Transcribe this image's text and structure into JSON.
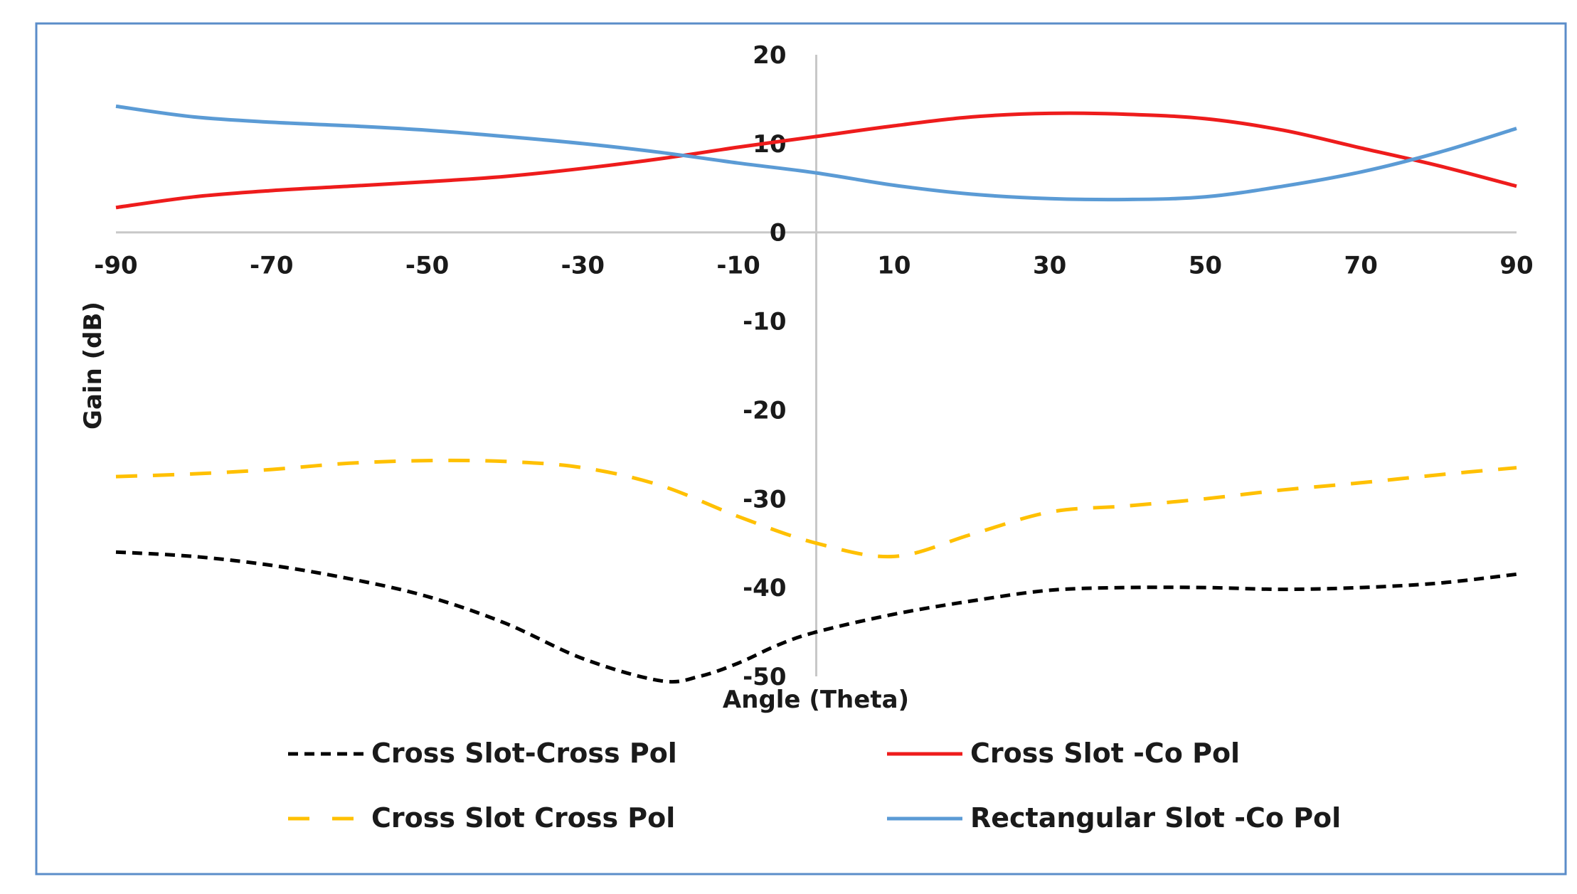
{
  "chart_data": {
    "type": "line",
    "xlabel": "Angle (Theta)",
    "ylabel": "Gain (dB)",
    "xlim": [
      -90,
      90
    ],
    "ylim": [
      -50,
      20
    ],
    "x_ticks": [
      -90,
      -70,
      -50,
      -30,
      -10,
      10,
      30,
      50,
      70,
      90
    ],
    "y_ticks": [
      20,
      10,
      0,
      -10,
      -20,
      -30,
      -40,
      -50
    ],
    "grid": false,
    "legend_position": "bottom",
    "colors": {
      "border": "#5b8dc9",
      "axis": "#c8c8c8"
    },
    "series": [
      {
        "name": "Cross Slot-Cross Pol",
        "color": "#000000",
        "dash": "short-dash",
        "x": [
          -90,
          -80,
          -70,
          -60,
          -50,
          -40,
          -30,
          -20,
          -15,
          -10,
          -5,
          0,
          10,
          20,
          30,
          40,
          50,
          60,
          70,
          80,
          90
        ],
        "y": [
          -36,
          -36.5,
          -37.5,
          -39,
          -41,
          -44,
          -48,
          -50.5,
          -50,
          -48.5,
          -46.5,
          -45,
          -43,
          -41.5,
          -40.3,
          -40,
          -40,
          -40.2,
          -40,
          -39.5,
          -38.5
        ]
      },
      {
        "name": "Cross Slot -Co Pol",
        "color": "#ee1c1c",
        "dash": "solid",
        "x": [
          -90,
          -80,
          -70,
          -60,
          -50,
          -40,
          -30,
          -20,
          -10,
          0,
          10,
          20,
          30,
          40,
          50,
          60,
          70,
          80,
          90
        ],
        "y": [
          2.8,
          4,
          4.7,
          5.2,
          5.7,
          6.3,
          7.2,
          8.3,
          9.6,
          10.8,
          12,
          13,
          13.4,
          13.3,
          12.8,
          11.5,
          9.5,
          7.5,
          5.2
        ]
      },
      {
        "name": "Cross Slot Cross Pol",
        "color": "#ffc000",
        "dash": "long-dash",
        "x": [
          -90,
          -80,
          -70,
          -60,
          -50,
          -40,
          -30,
          -20,
          -10,
          0,
          10,
          20,
          30,
          40,
          50,
          60,
          70,
          80,
          90
        ],
        "y": [
          -27.5,
          -27.2,
          -26.7,
          -26,
          -25.7,
          -25.8,
          -26.5,
          -28.5,
          -32,
          -35,
          -36.5,
          -34,
          -31.5,
          -30.8,
          -30,
          -29,
          -28.2,
          -27.3,
          -26.5
        ]
      },
      {
        "name": "Rectangular Slot -Co Pol",
        "color": "#5b9bd5",
        "dash": "solid",
        "x": [
          -90,
          -80,
          -70,
          -60,
          -50,
          -40,
          -30,
          -20,
          -10,
          0,
          10,
          20,
          30,
          40,
          50,
          60,
          70,
          80,
          90
        ],
        "y": [
          14.2,
          13,
          12.4,
          12,
          11.5,
          10.8,
          10,
          9,
          7.8,
          6.7,
          5.3,
          4.3,
          3.8,
          3.7,
          4,
          5.2,
          6.8,
          9,
          11.7
        ]
      }
    ]
  }
}
